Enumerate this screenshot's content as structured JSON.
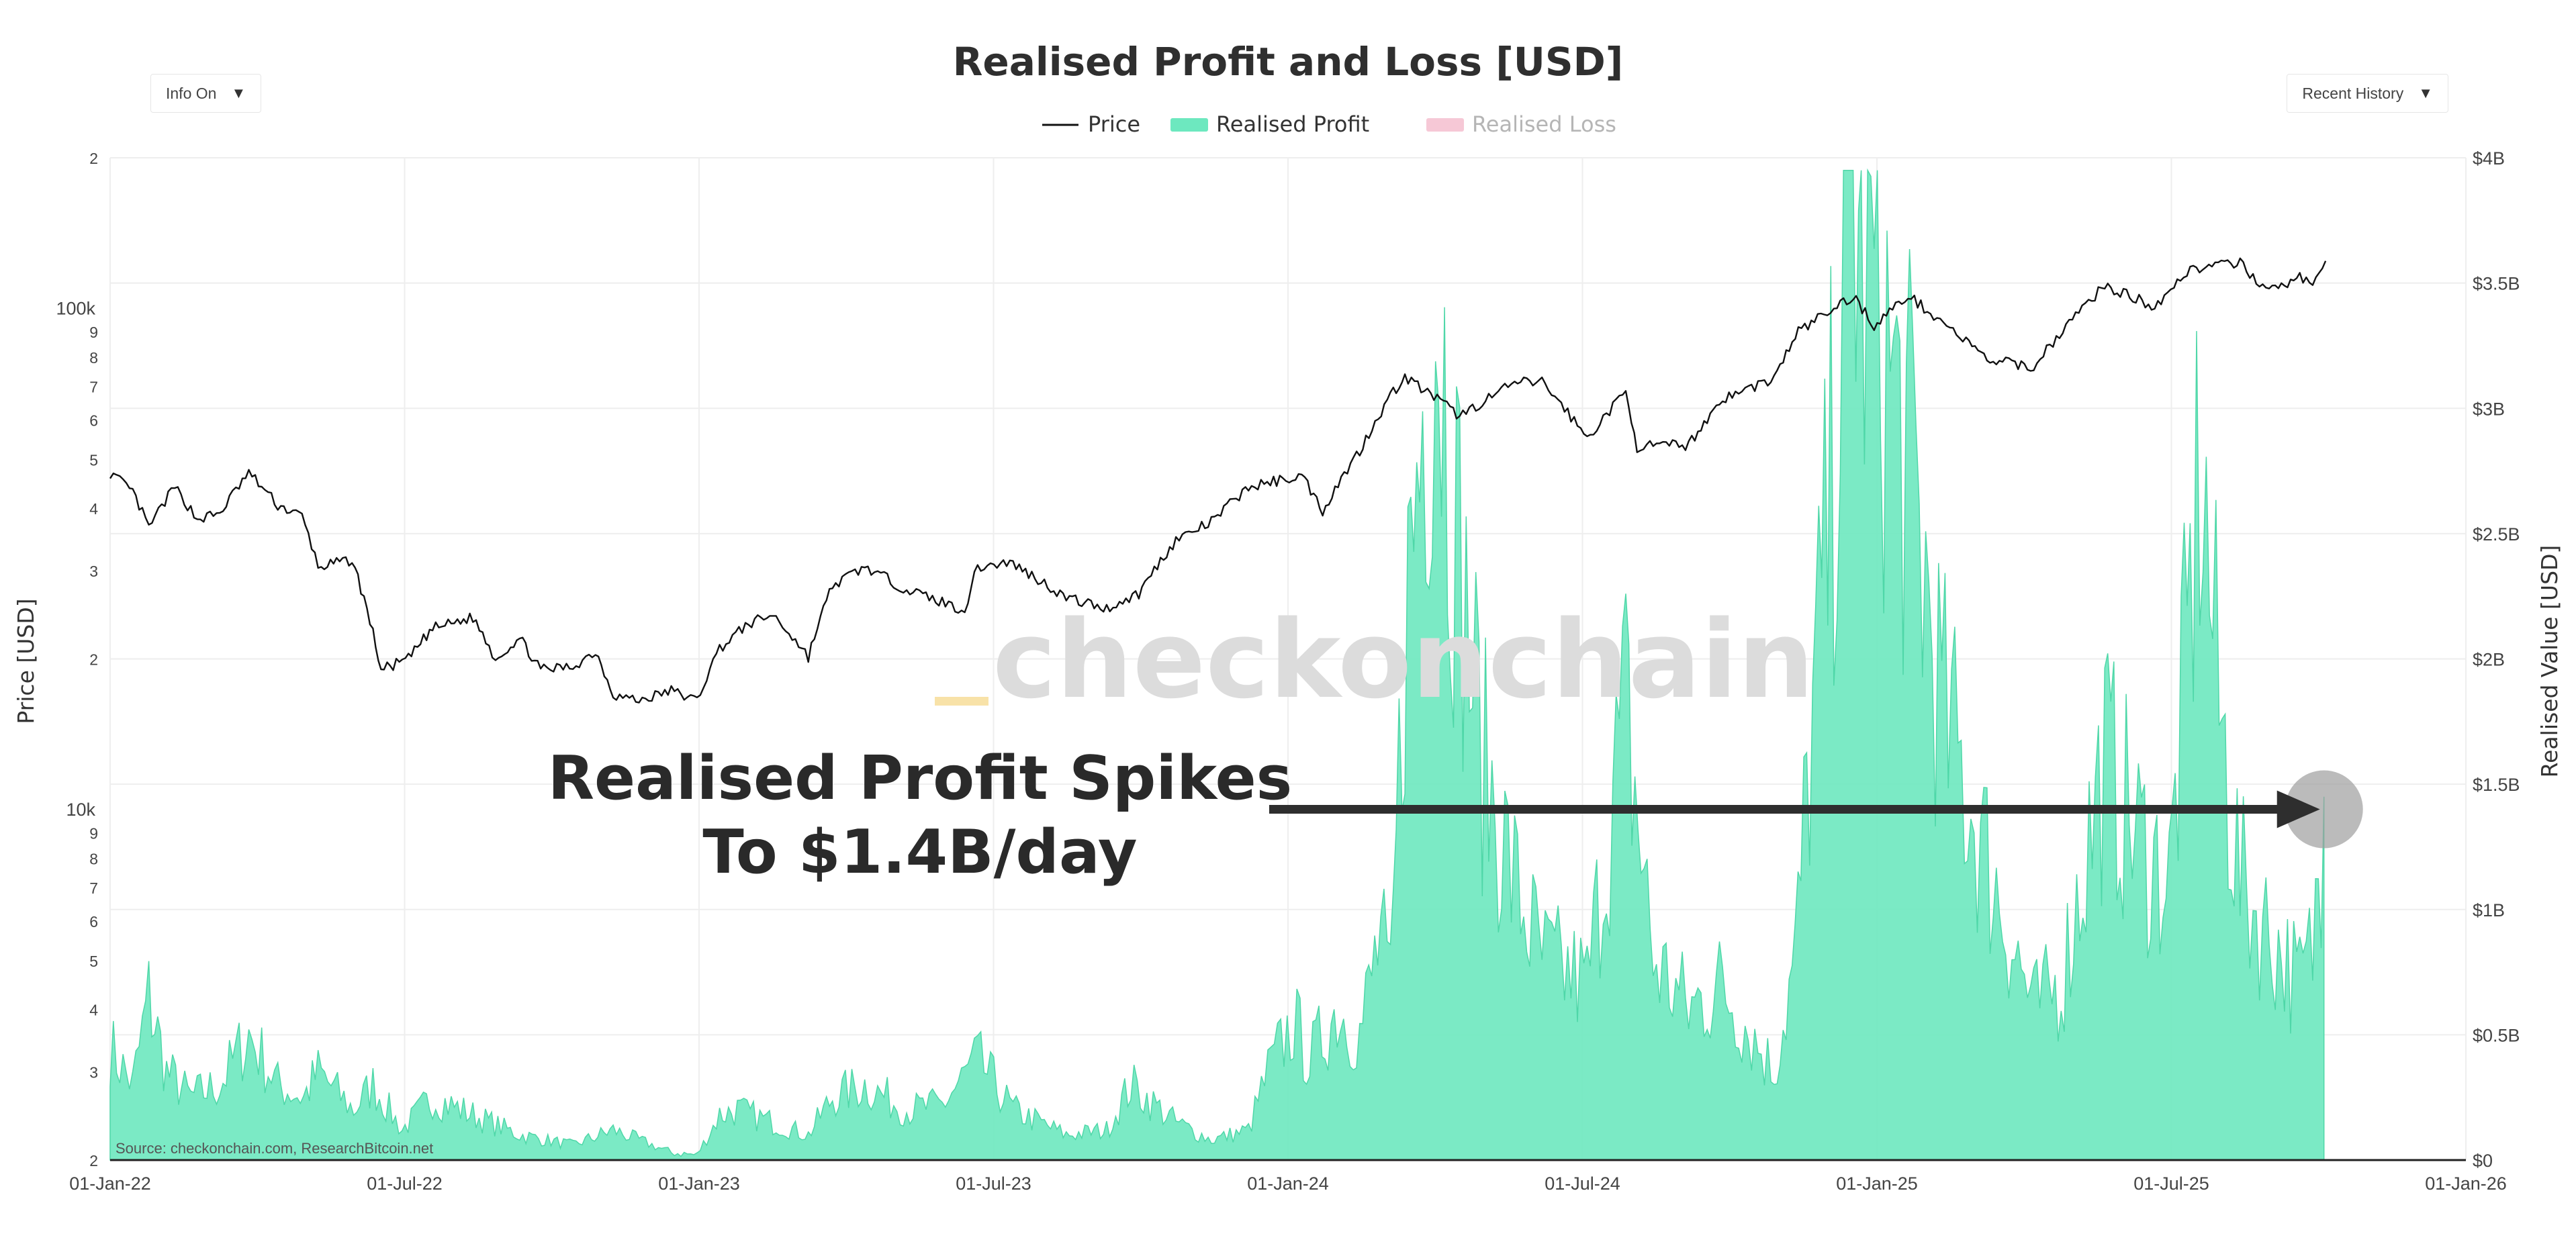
{
  "menus": {
    "info_label": "Info On",
    "history_label": "Recent History",
    "dropdown_glyph": "▼"
  },
  "annotation": {
    "line1": "Realised Profit Spikes",
    "line2": "To $1.4B/day",
    "arrow_value": 1.4,
    "arrow_color": "#2e2e2e",
    "marker_color": "#9e9e9e"
  },
  "watermark": "checkonchain",
  "source": "Source: checkonchain.com, ResearchBitcoin.net",
  "chart_data": {
    "type": "area",
    "title": "Realised Profit and Loss [USD]",
    "ylabel_left": "Price [USD]",
    "ylabel_right": "Realised Value [USD]",
    "x_domain": [
      "2022-01-01",
      "2026-01-01"
    ],
    "x_ticks": [
      "01-Jan-22",
      "01-Jul-22",
      "01-Jan-23",
      "01-Jul-23",
      "01-Jan-24",
      "01-Jul-24",
      "01-Jan-25",
      "01-Jul-25",
      "01-Jan-26"
    ],
    "y_left_scale": "log",
    "y_left_range": [
      2000,
      200000
    ],
    "y_left_ticks": [
      {
        "v": 200000,
        "t": "2"
      },
      {
        "v": 100000,
        "t": "100k"
      },
      {
        "v": 90000,
        "t": "9"
      },
      {
        "v": 80000,
        "t": "8"
      },
      {
        "v": 70000,
        "t": "7"
      },
      {
        "v": 60000,
        "t": "6"
      },
      {
        "v": 50000,
        "t": "5"
      },
      {
        "v": 40000,
        "t": "4"
      },
      {
        "v": 30000,
        "t": "3"
      },
      {
        "v": 20000,
        "t": "2"
      },
      {
        "v": 10000,
        "t": "10k"
      },
      {
        "v": 9000,
        "t": "9"
      },
      {
        "v": 8000,
        "t": "8"
      },
      {
        "v": 7000,
        "t": "7"
      },
      {
        "v": 6000,
        "t": "6"
      },
      {
        "v": 5000,
        "t": "5"
      },
      {
        "v": 4000,
        "t": "4"
      },
      {
        "v": 3000,
        "t": "3"
      },
      {
        "v": 2000,
        "t": "2"
      }
    ],
    "y_right_range": [
      0,
      4
    ],
    "y_right_ticks": [
      "$0",
      "$0.5B",
      "$1B",
      "$1.5B",
      "$2B",
      "$2.5B",
      "$3B",
      "$3.5B",
      "$4B"
    ],
    "legend": [
      {
        "name": "Price",
        "color": "#111111",
        "kind": "line",
        "active": true
      },
      {
        "name": "Realised Profit",
        "color": "#6de8bf",
        "kind": "area",
        "active": true
      },
      {
        "name": "Realised Loss",
        "color": "#f6c8d6",
        "kind": "area",
        "active": false
      }
    ],
    "series": [
      {
        "name": "Price",
        "unit": "USD",
        "points": [
          [
            "2022-01-01",
            47000
          ],
          [
            "2022-01-15",
            43000
          ],
          [
            "2022-01-25",
            36500
          ],
          [
            "2022-02-10",
            44000
          ],
          [
            "2022-02-24",
            38000
          ],
          [
            "2022-03-10",
            39000
          ],
          [
            "2022-03-28",
            47000
          ],
          [
            "2022-04-15",
            40500
          ],
          [
            "2022-04-30",
            38500
          ],
          [
            "2022-05-10",
            30500
          ],
          [
            "2022-05-31",
            31500
          ],
          [
            "2022-06-13",
            22500
          ],
          [
            "2022-06-18",
            19000
          ],
          [
            "2022-07-05",
            20000
          ],
          [
            "2022-07-20",
            23000
          ],
          [
            "2022-08-14",
            24200
          ],
          [
            "2022-08-28",
            20000
          ],
          [
            "2022-09-12",
            22000
          ],
          [
            "2022-09-25",
            19000
          ],
          [
            "2022-10-15",
            19300
          ],
          [
            "2022-10-29",
            20700
          ],
          [
            "2022-11-09",
            17000
          ],
          [
            "2022-11-25",
            16500
          ],
          [
            "2022-12-15",
            17300
          ],
          [
            "2022-12-31",
            16500
          ],
          [
            "2023-01-14",
            21000
          ],
          [
            "2023-02-01",
            23500
          ],
          [
            "2023-02-16",
            24500
          ],
          [
            "2023-03-10",
            20200
          ],
          [
            "2023-03-25",
            28000
          ],
          [
            "2023-04-14",
            30500
          ],
          [
            "2023-05-10",
            27500
          ],
          [
            "2023-06-15",
            25000
          ],
          [
            "2023-06-23",
            30500
          ],
          [
            "2023-07-13",
            31200
          ],
          [
            "2023-08-17",
            26500
          ],
          [
            "2023-09-11",
            25200
          ],
          [
            "2023-10-01",
            27000
          ],
          [
            "2023-10-24",
            34500
          ],
          [
            "2023-11-15",
            37500
          ],
          [
            "2023-12-08",
            44000
          ],
          [
            "2024-01-10",
            46500
          ],
          [
            "2024-01-23",
            39500
          ],
          [
            "2024-02-15",
            52000
          ],
          [
            "2024-03-05",
            67000
          ],
          [
            "2024-03-14",
            73000
          ],
          [
            "2024-04-17",
            61000
          ],
          [
            "2024-05-21",
            71000
          ],
          [
            "2024-06-07",
            71500
          ],
          [
            "2024-07-05",
            55000
          ],
          [
            "2024-07-29",
            68000
          ],
          [
            "2024-08-05",
            53000
          ],
          [
            "2024-09-06",
            53500
          ],
          [
            "2024-09-27",
            66000
          ],
          [
            "2024-10-29",
            72500
          ],
          [
            "2024-11-13",
            90000
          ],
          [
            "2024-12-05",
            100000
          ],
          [
            "2024-12-17",
            106000
          ],
          [
            "2024-12-30",
            92500
          ],
          [
            "2025-01-20",
            106000
          ],
          [
            "2025-02-25",
            86000
          ],
          [
            "2025-03-10",
            79000
          ],
          [
            "2025-04-08",
            76500
          ],
          [
            "2025-05-22",
            111000
          ],
          [
            "2025-06-22",
            101000
          ],
          [
            "2025-07-14",
            120000
          ],
          [
            "2025-08-14",
            123000
          ],
          [
            "2025-09-01",
            108000
          ],
          [
            "2025-09-20",
            115500
          ],
          [
            "2025-09-30",
            113000
          ],
          [
            "2025-10-06",
            124500
          ]
        ]
      },
      {
        "name": "Realised Profit",
        "unit": "USD billions per day",
        "points": [
          [
            "2022-01-01",
            0.45
          ],
          [
            "2022-01-15",
            0.3
          ],
          [
            "2022-01-25",
            0.65
          ],
          [
            "2022-02-05",
            0.35
          ],
          [
            "2022-02-20",
            0.25
          ],
          [
            "2022-03-10",
            0.3
          ],
          [
            "2022-03-28",
            0.5
          ],
          [
            "2022-04-15",
            0.3
          ],
          [
            "2022-05-01",
            0.25
          ],
          [
            "2022-05-10",
            0.35
          ],
          [
            "2022-06-01",
            0.2
          ],
          [
            "2022-06-13",
            0.3
          ],
          [
            "2022-07-01",
            0.12
          ],
          [
            "2022-07-20",
            0.25
          ],
          [
            "2022-08-14",
            0.18
          ],
          [
            "2022-09-12",
            0.1
          ],
          [
            "2022-10-15",
            0.06
          ],
          [
            "2022-11-09",
            0.12
          ],
          [
            "2022-12-15",
            0.03
          ],
          [
            "2022-12-31",
            0.02
          ],
          [
            "2023-01-14",
            0.18
          ],
          [
            "2023-01-25",
            0.2
          ],
          [
            "2023-02-16",
            0.15
          ],
          [
            "2023-03-10",
            0.1
          ],
          [
            "2023-03-25",
            0.25
          ],
          [
            "2023-04-14",
            0.3
          ],
          [
            "2023-05-10",
            0.2
          ],
          [
            "2023-06-01",
            0.22
          ],
          [
            "2023-06-23",
            0.4
          ],
          [
            "2023-07-15",
            0.2
          ],
          [
            "2023-08-17",
            0.1
          ],
          [
            "2023-09-11",
            0.12
          ],
          [
            "2023-09-26",
            0.3
          ],
          [
            "2023-10-24",
            0.15
          ],
          [
            "2023-11-15",
            0.08
          ],
          [
            "2023-12-08",
            0.12
          ],
          [
            "2023-12-20",
            0.35
          ],
          [
            "2024-01-05",
            0.55
          ],
          [
            "2024-01-15",
            0.4
          ],
          [
            "2024-02-01",
            0.6
          ],
          [
            "2024-02-15",
            0.5
          ],
          [
            "2024-02-28",
            0.9
          ],
          [
            "2024-03-05",
            0.65
          ],
          [
            "2024-03-14",
            2.1
          ],
          [
            "2024-03-25",
            3.0
          ],
          [
            "2024-04-02",
            3.55
          ],
          [
            "2024-04-15",
            2.5
          ],
          [
            "2024-05-01",
            1.6
          ],
          [
            "2024-05-21",
            1.1
          ],
          [
            "2024-06-07",
            0.8
          ],
          [
            "2024-07-05",
            0.7
          ],
          [
            "2024-07-29",
            1.8
          ],
          [
            "2024-08-15",
            0.8
          ],
          [
            "2024-09-06",
            0.6
          ],
          [
            "2024-09-27",
            0.7
          ],
          [
            "2024-10-15",
            0.5
          ],
          [
            "2024-10-29",
            0.35
          ],
          [
            "2024-11-11",
            0.8
          ],
          [
            "2024-11-20",
            1.6
          ],
          [
            "2024-12-05",
            2.8
          ],
          [
            "2024-12-17",
            3.9
          ],
          [
            "2024-12-22",
            3.6
          ],
          [
            "2025-01-01",
            3.4
          ],
          [
            "2025-01-15",
            2.9
          ],
          [
            "2025-01-25",
            2.6
          ],
          [
            "2025-02-10",
            1.8
          ],
          [
            "2025-03-10",
            1.2
          ],
          [
            "2025-04-08",
            0.6
          ],
          [
            "2025-04-25",
            0.7
          ],
          [
            "2025-05-22",
            1.6
          ],
          [
            "2025-06-10",
            1.3
          ],
          [
            "2025-07-01",
            1.1
          ],
          [
            "2025-07-14",
            2.2
          ],
          [
            "2025-07-20",
            2.8
          ],
          [
            "2025-08-01",
            1.8
          ],
          [
            "2025-08-14",
            1.1
          ],
          [
            "2025-09-01",
            0.9
          ],
          [
            "2025-09-20",
            0.7
          ],
          [
            "2025-09-28",
            0.85
          ],
          [
            "2025-10-05",
            1.45
          ]
        ]
      },
      {
        "name": "Realised Loss",
        "unit": "USD billions per day",
        "visible": false,
        "points": []
      }
    ]
  }
}
